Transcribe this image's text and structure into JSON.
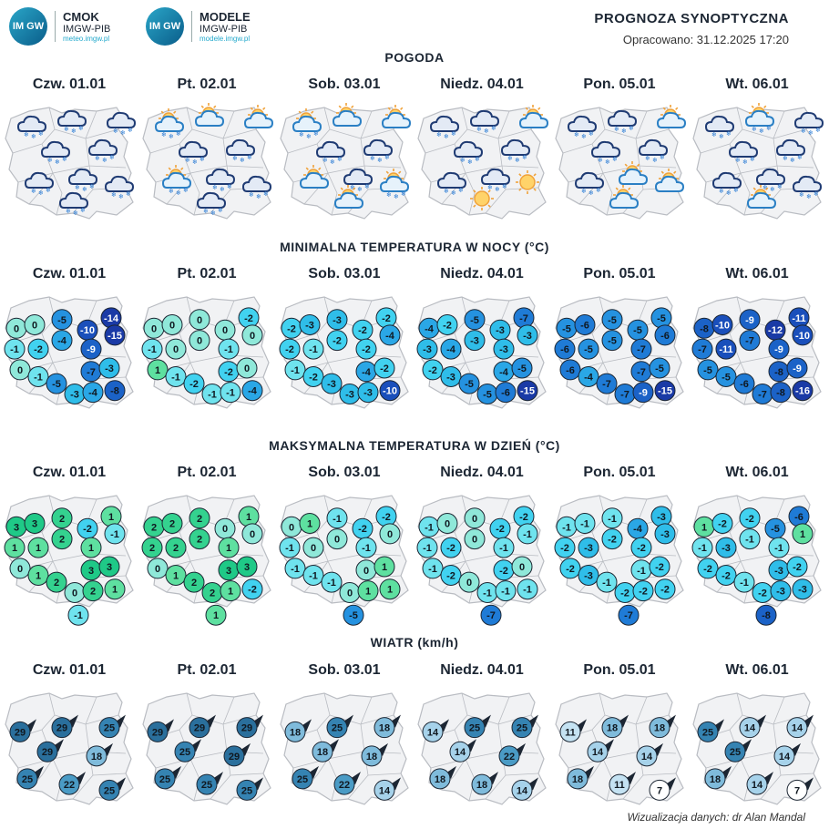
{
  "logos": [
    {
      "badge": "IM GW",
      "name": "CMOK",
      "org": "IMGW-PIB",
      "url": "meteo.imgw.pl"
    },
    {
      "badge": "IM GW",
      "name": "MODELE",
      "org": "IMGW-PIB",
      "url": "modele.imgw.pl"
    }
  ],
  "header": {
    "title": "PROGNOZA SYNOPTYCZNA",
    "date": "Opracowano: 31.12.2025 17:20"
  },
  "days": [
    "Czw. 01.01",
    "Pt. 02.01",
    "Sob. 03.01",
    "Niedz. 04.01",
    "Pon. 05.01",
    "Wt. 06.01"
  ],
  "sections": {
    "weather": "POGODA",
    "tmin": "MINIMALNA TEMPERATURA W NOCY (°C)",
    "tmax": "MAKSYMALNA TEMPERATURA W DZIEŃ (°C)",
    "wind": "WIATR (km/h)"
  },
  "weather": [
    [
      "cloud-snow",
      "cloud-snow",
      "cloud-snow",
      "cloud-snow",
      "cloud-snow",
      "cloud-snow",
      "cloud-snow",
      "cloud-snow",
      "cloud-snow"
    ],
    [
      "sun-cloud-snow",
      "sun-cloud",
      "sun-cloud",
      "cloud-snow",
      "cloud-snow",
      "sun-cloud-snow",
      "cloud-snow",
      "cloud-snow",
      "cloud-snow"
    ],
    [
      "sun-cloud-snow",
      "sun-cloud",
      "sun-cloud",
      "cloud-snow",
      "cloud-snow",
      "sun-cloud",
      "cloud-snow",
      "sun-cloud-snow",
      "sun-cloud"
    ],
    [
      "cloud-snow",
      "cloud-snow",
      "sun-cloud",
      "cloud-snow",
      "cloud-snow",
      "cloud-snow",
      "cloud-snow",
      "sun",
      "sun"
    ],
    [
      "cloud-snow",
      "cloud-snow",
      "sun-cloud",
      "cloud-snow",
      "cloud-snow",
      "cloud-snow",
      "sun-cloud",
      "sun-cloud",
      "sun-cloud"
    ],
    [
      "cloud-snow",
      "sun-cloud-snow",
      "cloud-snow",
      "cloud-snow",
      "cloud-snow",
      "cloud-snow",
      "cloud-snow",
      "cloud-snow",
      "sun-cloud"
    ]
  ],
  "tmin": [
    [
      0,
      0,
      -5,
      -14,
      -10,
      -15,
      -1,
      -2,
      -4,
      -9,
      0,
      -1,
      -5,
      -7,
      -3,
      -3,
      -4,
      -8
    ],
    [
      0,
      0,
      0,
      -2,
      0,
      0,
      -1,
      0,
      0,
      -1,
      1,
      -1,
      -2,
      -2,
      0,
      -1,
      -1,
      -4
    ],
    [
      -2,
      -3,
      -3,
      -2,
      -2,
      -4,
      -2,
      -1,
      -2,
      -2,
      -1,
      -2,
      -3,
      -4,
      -2,
      -3,
      -3,
      -10
    ],
    [
      -4,
      -2,
      -5,
      -7,
      -3,
      -3,
      -3,
      -4,
      -3,
      -3,
      -2,
      -3,
      -5,
      -4,
      -5,
      -5,
      -6,
      -15
    ],
    [
      -5,
      -6,
      -5,
      -5,
      -5,
      -6,
      -6,
      -5,
      -5,
      -7,
      -6,
      -4,
      -7,
      -7,
      -5,
      -7,
      -9,
      -15
    ],
    [
      -8,
      -10,
      -9,
      -11,
      -12,
      -10,
      -7,
      -11,
      -7,
      -9,
      -5,
      -5,
      -6,
      -8,
      -9,
      -7,
      -8,
      -16
    ]
  ],
  "tmax": [
    [
      3,
      3,
      2,
      1,
      -2,
      -1,
      1,
      1,
      2,
      1,
      0,
      1,
      2,
      3,
      3,
      0,
      2,
      1,
      -1
    ],
    [
      2,
      2,
      2,
      1,
      0,
      0,
      2,
      2,
      2,
      1,
      0,
      1,
      2,
      3,
      3,
      2,
      1,
      -2,
      1
    ],
    [
      0,
      1,
      -1,
      -2,
      -2,
      0,
      -1,
      0,
      0,
      -1,
      -1,
      -1,
      -1,
      0,
      1,
      0,
      1,
      1,
      -5
    ],
    [
      -1,
      0,
      0,
      -2,
      -2,
      -1,
      -1,
      -2,
      0,
      -1,
      -1,
      -2,
      0,
      -2,
      0,
      -1,
      -1,
      -1,
      -7
    ],
    [
      -1,
      -1,
      -1,
      -3,
      -4,
      -3,
      -2,
      -3,
      -2,
      -2,
      -2,
      -3,
      -1,
      -1,
      -2,
      -2,
      -2,
      -2,
      -7
    ],
    [
      1,
      -2,
      -2,
      -6,
      -5,
      1,
      -1,
      -3,
      -1,
      -1,
      -2,
      -2,
      -1,
      -3,
      -2,
      -2,
      -3,
      -3,
      -8
    ]
  ],
  "wind": [
    [
      29,
      29,
      25,
      29,
      18,
      25,
      22,
      25
    ],
    [
      29,
      29,
      29,
      25,
      29,
      25,
      25,
      25
    ],
    [
      18,
      25,
      18,
      18,
      18,
      25,
      22,
      14
    ],
    [
      14,
      25,
      25,
      14,
      22,
      18,
      18,
      14
    ],
    [
      11,
      18,
      18,
      14,
      14,
      18,
      11,
      7
    ],
    [
      25,
      14,
      14,
      25,
      14,
      18,
      14,
      7
    ]
  ],
  "credit": "Wizualizacja danych: dr Alan Mandal",
  "colors": {
    "snow": "#2f7fd6",
    "cloud": "#1f3b73",
    "sun": "#f0a23a",
    "map_fill": "#f1f2f4",
    "map_line": "#b9bcc2"
  }
}
